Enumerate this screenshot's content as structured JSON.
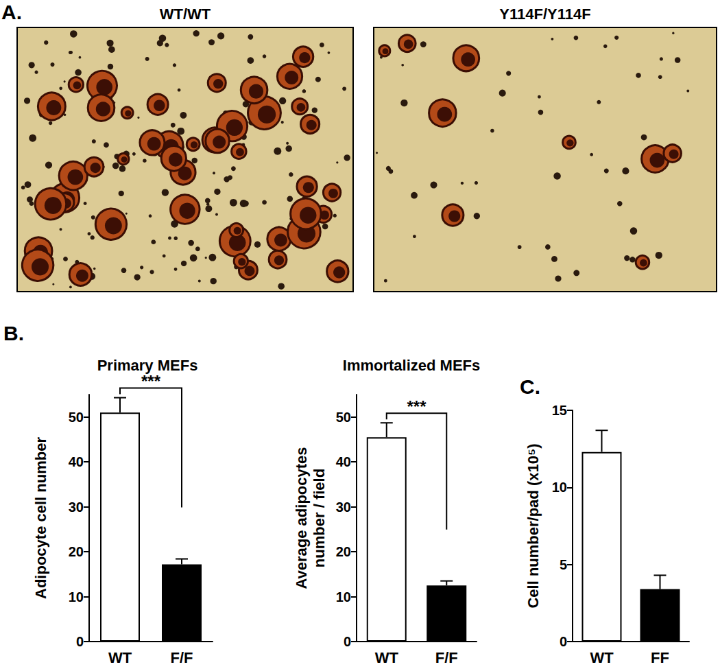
{
  "panel_a": {
    "label": "A.",
    "images": [
      {
        "title": "WT/WT"
      },
      {
        "title": "Y114F/Y114F"
      }
    ]
  },
  "chart_data": [
    {
      "type": "bar",
      "panel_label": "B.",
      "title": "Primary MEFs",
      "y_label": "Adipocyte cell number",
      "categories": [
        "WT",
        "F/F"
      ],
      "values": [
        51,
        17.2
      ],
      "errors": [
        3.3,
        1.2
      ],
      "colors": [
        "#ffffff",
        "#000000"
      ],
      "ylim": [
        0,
        55
      ],
      "yticks": [
        0,
        10,
        20,
        30,
        40,
        50
      ],
      "grid": false,
      "annotations": [
        {
          "text": "***",
          "between": [
            "WT",
            "F/F"
          ]
        }
      ]
    },
    {
      "type": "bar",
      "title": "Immortalized MEFs",
      "y_label": "Average adipocytes\nnumber / field",
      "categories": [
        "WT",
        "F/F"
      ],
      "values": [
        45.5,
        12.5
      ],
      "errors": [
        3.2,
        1.0
      ],
      "colors": [
        "#ffffff",
        "#000000"
      ],
      "ylim": [
        0,
        55
      ],
      "yticks": [
        0,
        10,
        20,
        30,
        40,
        50
      ],
      "grid": false,
      "annotations": [
        {
          "text": "***",
          "between": [
            "WT",
            "F/F"
          ]
        }
      ]
    },
    {
      "type": "bar",
      "panel_label": "C.",
      "y_label": "Cell number/pad (x10⁵)",
      "categories": [
        "WT",
        "FF"
      ],
      "values": [
        12.3,
        3.4
      ],
      "errors": [
        1.4,
        0.9
      ],
      "colors": [
        "#ffffff",
        "#000000"
      ],
      "ylim": [
        0,
        15
      ],
      "yticks": [
        0,
        5,
        10,
        15
      ],
      "grid": false
    }
  ]
}
